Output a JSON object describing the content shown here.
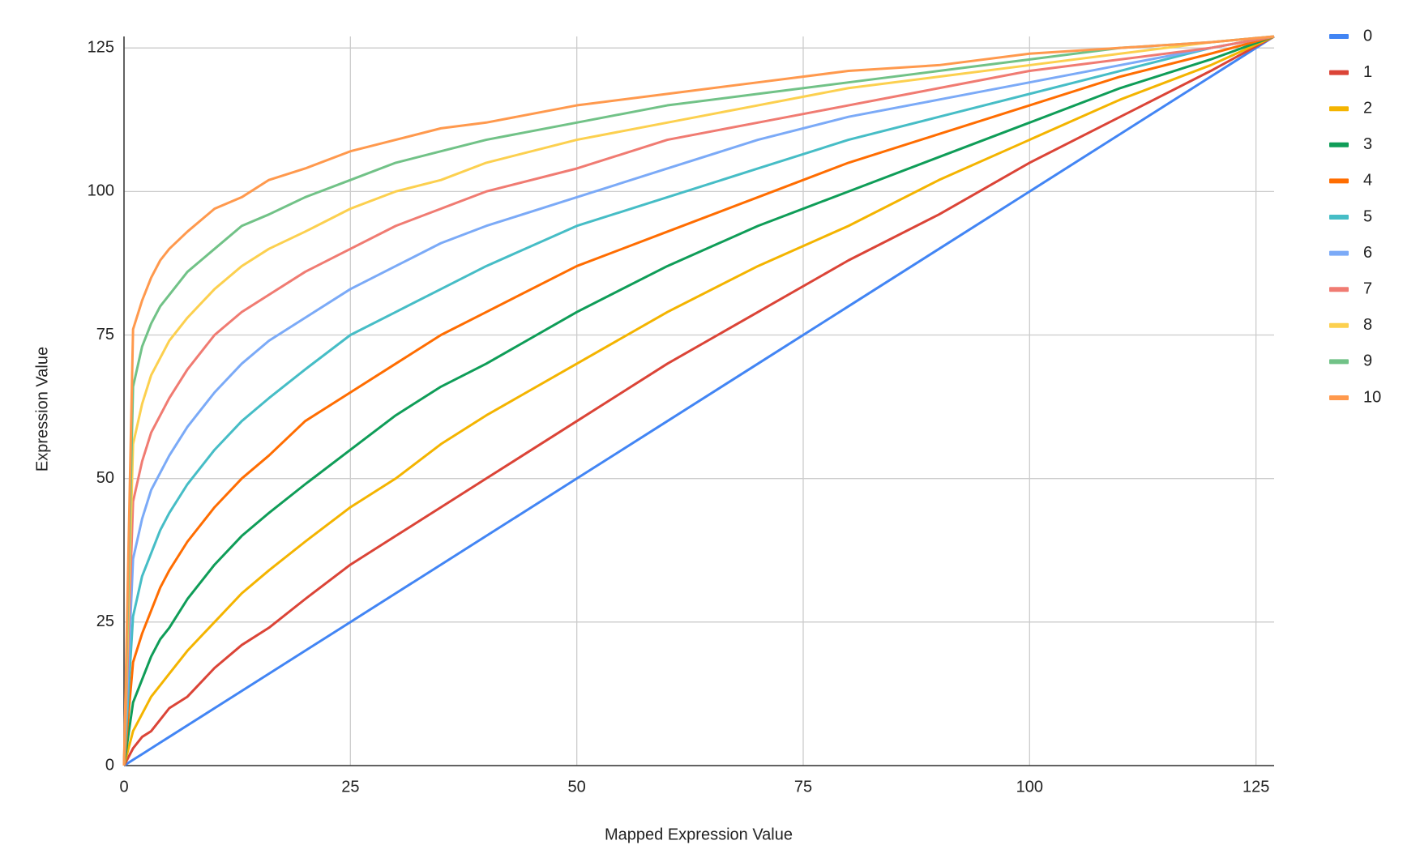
{
  "chart_data": {
    "type": "line",
    "x_label": "Mapped Expression Value",
    "y_label": "Expression Value",
    "x": [
      0,
      1,
      2,
      3,
      4,
      5,
      7,
      10,
      13,
      16,
      20,
      25,
      30,
      35,
      40,
      50,
      60,
      70,
      80,
      90,
      100,
      110,
      120,
      127
    ],
    "series": [
      {
        "name": "0",
        "color": "#4285f4",
        "values": [
          0,
          1,
          2,
          3,
          4,
          5,
          7,
          10,
          13,
          16,
          20,
          25,
          30,
          35,
          40,
          50,
          60,
          70,
          80,
          90,
          100,
          110,
          120,
          127
        ]
      },
      {
        "name": "1",
        "color": "#db4437",
        "values": [
          0,
          3,
          5,
          6,
          8,
          10,
          12,
          17,
          21,
          24,
          29,
          35,
          40,
          45,
          50,
          60,
          70,
          79,
          88,
          96,
          105,
          113,
          121,
          127
        ]
      },
      {
        "name": "2",
        "color": "#f4b400",
        "values": [
          0,
          6,
          9,
          12,
          14,
          16,
          20,
          25,
          30,
          34,
          39,
          45,
          50,
          56,
          61,
          70,
          79,
          87,
          94,
          102,
          109,
          116,
          122,
          127
        ]
      },
      {
        "name": "3",
        "color": "#0f9d58",
        "values": [
          0,
          11,
          15,
          19,
          22,
          24,
          29,
          35,
          40,
          44,
          49,
          55,
          61,
          66,
          70,
          79,
          87,
          94,
          100,
          106,
          112,
          118,
          123,
          127
        ]
      },
      {
        "name": "4",
        "color": "#ff6d01",
        "values": [
          0,
          18,
          23,
          27,
          31,
          34,
          39,
          45,
          50,
          54,
          60,
          65,
          70,
          75,
          79,
          87,
          93,
          99,
          105,
          110,
          115,
          120,
          124,
          127
        ]
      },
      {
        "name": "5",
        "color": "#46bdc6",
        "values": [
          0,
          26,
          33,
          37,
          41,
          44,
          49,
          55,
          60,
          64,
          69,
          75,
          79,
          83,
          87,
          94,
          99,
          104,
          109,
          113,
          117,
          121,
          125,
          127
        ]
      },
      {
        "name": "6",
        "color": "#7baaf7",
        "values": [
          0,
          36,
          43,
          48,
          51,
          54,
          59,
          65,
          70,
          74,
          78,
          83,
          87,
          91,
          94,
          99,
          104,
          109,
          113,
          116,
          119,
          122,
          125,
          127
        ]
      },
      {
        "name": "7",
        "color": "#f07b72",
        "values": [
          0,
          46,
          53,
          58,
          61,
          64,
          69,
          75,
          79,
          82,
          86,
          90,
          94,
          97,
          100,
          104,
          109,
          112,
          115,
          118,
          121,
          123,
          125,
          127
        ]
      },
      {
        "name": "8",
        "color": "#fcd04f",
        "values": [
          0,
          56,
          63,
          68,
          71,
          74,
          78,
          83,
          87,
          90,
          93,
          97,
          100,
          102,
          105,
          109,
          112,
          115,
          118,
          120,
          122,
          124,
          126,
          127
        ]
      },
      {
        "name": "9",
        "color": "#71c287",
        "values": [
          0,
          66,
          73,
          77,
          80,
          82,
          86,
          90,
          94,
          96,
          99,
          102,
          105,
          107,
          109,
          112,
          115,
          117,
          119,
          121,
          123,
          125,
          126,
          127
        ]
      },
      {
        "name": "10",
        "color": "#ff994d",
        "values": [
          0,
          76,
          81,
          85,
          88,
          90,
          93,
          97,
          99,
          102,
          104,
          107,
          109,
          111,
          112,
          115,
          117,
          119,
          121,
          122,
          124,
          125,
          126,
          127
        ]
      }
    ],
    "xlim": [
      0,
      127
    ],
    "ylim": [
      0,
      127
    ],
    "xticks": [
      0,
      25,
      50,
      75,
      100,
      125
    ],
    "yticks": [
      0,
      25,
      50,
      75,
      100,
      125
    ],
    "grid": true,
    "legend": "right"
  }
}
